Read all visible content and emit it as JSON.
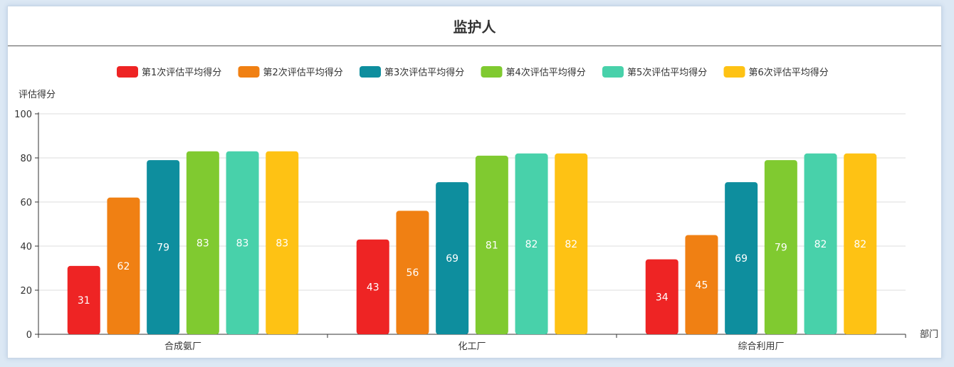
{
  "panel": {
    "title": "监护人"
  },
  "chart_data": {
    "type": "bar",
    "title": "监护人",
    "xlabel": "部门",
    "ylabel": "评估得分",
    "ylim": [
      0,
      100
    ],
    "yticks": [
      0,
      20,
      40,
      60,
      80,
      100
    ],
    "grid": true,
    "legend_position": "top",
    "categories": [
      "合成氨厂",
      "化工厂",
      "综合利用厂"
    ],
    "series": [
      {
        "name": "第1次评估平均得分",
        "color": "#ee2424",
        "values": [
          31,
          43,
          34
        ]
      },
      {
        "name": "第2次评估平均得分",
        "color": "#f08013",
        "values": [
          62,
          56,
          45
        ]
      },
      {
        "name": "第3次评估平均得分",
        "color": "#0e8e9e",
        "values": [
          79,
          69,
          69
        ]
      },
      {
        "name": "第4次评估平均得分",
        "color": "#80ca30",
        "values": [
          83,
          81,
          79
        ]
      },
      {
        "name": "第5次评估平均得分",
        "color": "#48d1aa",
        "values": [
          83,
          82,
          82
        ]
      },
      {
        "name": "第6次评估平均得分",
        "color": "#fec214",
        "values": [
          83,
          82,
          82
        ]
      }
    ]
  }
}
